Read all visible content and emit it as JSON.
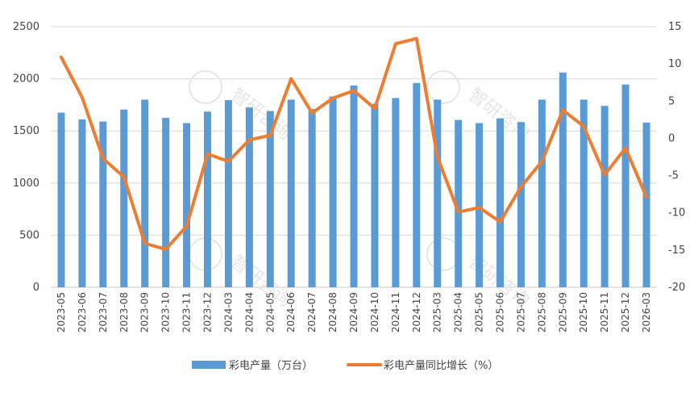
{
  "chart_data": {
    "type": "bar",
    "categories": [
      "2023-05",
      "2023-06",
      "2023-07",
      "2023-08",
      "2023-09",
      "2023-10",
      "2023-11",
      "2023-12",
      "2024-03",
      "2024-04",
      "2024-05",
      "2024-06",
      "2024-07",
      "2024-08",
      "2024-09",
      "2024-10",
      "2024-11",
      "2024-12",
      "2025-03",
      "2025-04",
      "2025-05",
      "2025-06",
      "2025-07",
      "2025-08",
      "2025-09",
      "2025-10",
      "2025-11",
      "2025-12",
      "2026-03"
    ],
    "series": [
      {
        "name": "彩电产量（万台）",
        "type": "bar",
        "axis": "left",
        "color": "#5b9bd5",
        "values": [
          1675,
          1610,
          1590,
          1705,
          1800,
          1625,
          1575,
          1685,
          1795,
          1725,
          1690,
          1800,
          1710,
          1830,
          1935,
          1760,
          1815,
          1960,
          1800,
          1605,
          1575,
          1620,
          1585,
          1800,
          2060,
          1800,
          1740,
          1945,
          1580
        ]
      },
      {
        "name": "彩电产量同比增长（%）",
        "type": "line",
        "axis": "right",
        "color": "#ed7d31",
        "values": [
          10.9,
          5.5,
          -2.7,
          -5.2,
          -14.1,
          -14.9,
          -11.8,
          -2.1,
          -3.1,
          -0.2,
          0.4,
          8.0,
          3.4,
          5.4,
          6.4,
          4.0,
          12.7,
          13.4,
          -2.5,
          -9.9,
          -9.3,
          -11.2,
          -6.5,
          -3.1,
          3.8,
          1.6,
          -4.9,
          -1.3,
          -7.9
        ]
      }
    ],
    "y_left": {
      "min": 0,
      "max": 2500,
      "ticks": [
        "0",
        "500",
        "1000",
        "1500",
        "2000",
        "2500"
      ]
    },
    "y_right": {
      "min": -20,
      "max": 15,
      "ticks": [
        "-20",
        "-15",
        "-10",
        "-5",
        "0",
        "5",
        "10",
        "15"
      ]
    },
    "grid": true,
    "legend_position": "bottom",
    "title": "",
    "xlabel": "",
    "ylabel": "",
    "watermark": "智研咨询"
  }
}
